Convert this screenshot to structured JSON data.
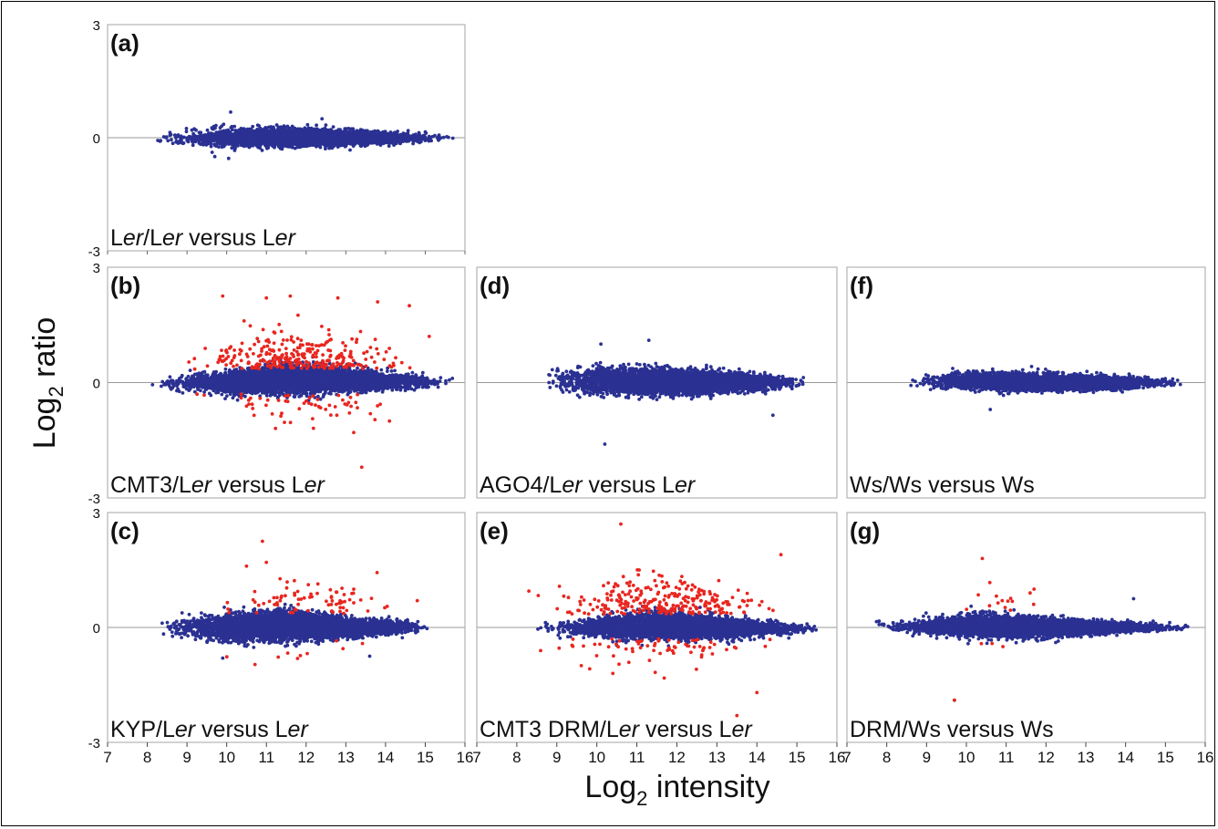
{
  "figure": {
    "ylabel_main": "Log",
    "ylabel_sub": "2",
    "ylabel_rest": " ratio",
    "xlabel_main": "Log",
    "xlabel_sub": "2",
    "xlabel_rest": " intensity",
    "colors": {
      "unchanged": "#2a3192",
      "changed": "#e8261f",
      "zero_line": "#9a9a9a",
      "frame": "#a6a6a6"
    }
  },
  "chart_data": [
    {
      "type": "scatter",
      "panel": "(a)",
      "label_parts": [
        [
          "L",
          false
        ],
        [
          "er",
          true
        ],
        [
          "/L",
          false
        ],
        [
          "er",
          true
        ],
        [
          " versus L",
          false
        ],
        [
          "er",
          true
        ]
      ],
      "xlim": [
        7,
        16
      ],
      "ylim": [
        -3,
        3
      ],
      "y_ticks": [
        "3",
        "0",
        "-3"
      ],
      "x_ticks": [],
      "series": [
        {
          "color": "blue",
          "x_range": [
            8.1,
            15.8
          ],
          "center": [
            [
              8.1,
              -0.02
            ],
            [
              10,
              0.0
            ],
            [
              12,
              0.0
            ],
            [
              14,
              0.0
            ],
            [
              15.8,
              0.0
            ]
          ],
          "spread": [
            [
              8.1,
              0.12
            ],
            [
              10,
              0.2
            ],
            [
              12,
              0.18
            ],
            [
              14,
              0.14
            ],
            [
              15.8,
              0.08
            ]
          ],
          "approx_points": 5000,
          "extremes": [
            [
              10.1,
              0.68
            ],
            [
              10.05,
              -0.55
            ],
            [
              9.7,
              -0.5
            ],
            [
              12.4,
              0.5
            ]
          ]
        }
      ]
    },
    {
      "type": "scatter",
      "panel": "(b)",
      "label_parts": [
        [
          "CMT3/L",
          false
        ],
        [
          "er",
          true
        ],
        [
          " versus L",
          false
        ],
        [
          "er",
          true
        ]
      ],
      "xlim": [
        7,
        16
      ],
      "ylim": [
        -3,
        3
      ],
      "y_ticks": [
        "3",
        "0",
        "-3"
      ],
      "x_ticks": [],
      "series": [
        {
          "color": "blue",
          "x_range": [
            8.0,
            15.9
          ],
          "center": [
            [
              8,
              0.0
            ],
            [
              10,
              0.0
            ],
            [
              11.5,
              0.1
            ],
            [
              13,
              0.05
            ],
            [
              15.9,
              0.0
            ]
          ],
          "spread": [
            [
              8,
              0.12
            ],
            [
              10,
              0.25
            ],
            [
              11.5,
              0.32
            ],
            [
              13,
              0.25
            ],
            [
              15.9,
              0.1
            ]
          ],
          "approx_points": 6000,
          "extremes": []
        },
        {
          "color": "red",
          "x_range": [
            8.4,
            15.2
          ],
          "approx_points": 340,
          "extremes": [
            [
              9.9,
              2.25
            ],
            [
              11,
              2.2
            ],
            [
              11.6,
              2.25
            ],
            [
              12.8,
              2.2
            ],
            [
              13.8,
              2.1
            ],
            [
              14.6,
              2.0
            ],
            [
              13.2,
              -1.3
            ],
            [
              13.4,
              -2.2
            ],
            [
              14.1,
              -1.0
            ],
            [
              15.1,
              1.2
            ]
          ]
        }
      ]
    },
    {
      "type": "scatter",
      "panel": "(c)",
      "label_parts": [
        [
          "KYP/L",
          false
        ],
        [
          "er",
          true
        ],
        [
          " versus L",
          false
        ],
        [
          "er",
          true
        ]
      ],
      "xlim": [
        7,
        16
      ],
      "ylim": [
        -3,
        3
      ],
      "y_ticks": [
        "3",
        "0",
        "-3"
      ],
      "x_ticks": [
        "7",
        "8",
        "9",
        "10",
        "11",
        "12",
        "13",
        "14",
        "15",
        "16"
      ],
      "series": [
        {
          "color": "blue",
          "x_range": [
            8.1,
            15.4
          ],
          "center": [
            [
              8.1,
              0.0
            ],
            [
              10,
              0.0
            ],
            [
              11.5,
              0.05
            ],
            [
              13,
              0.0
            ],
            [
              15.4,
              0.0
            ]
          ],
          "spread": [
            [
              8.1,
              0.15
            ],
            [
              10,
              0.3
            ],
            [
              11.5,
              0.3
            ],
            [
              13,
              0.22
            ],
            [
              15.4,
              0.1
            ]
          ],
          "approx_points": 6000,
          "extremes": [
            [
              9.9,
              -0.8
            ],
            [
              13.6,
              -0.75
            ]
          ]
        },
        {
          "color": "red",
          "x_range": [
            9.2,
            14.8
          ],
          "approx_points": 85,
          "extremes": [
            [
              10.9,
              2.25
            ],
            [
              11.0,
              1.7
            ],
            [
              10.5,
              1.6
            ],
            [
              13.2,
              1.0
            ],
            [
              14.8,
              0.7
            ]
          ]
        }
      ]
    },
    {
      "type": "scatter",
      "panel": "(d)",
      "label_parts": [
        [
          "AGO4/L",
          false
        ],
        [
          "er",
          true
        ],
        [
          " versus L",
          false
        ],
        [
          "er",
          true
        ]
      ],
      "xlim": [
        7,
        16
      ],
      "ylim": [
        -3,
        3
      ],
      "y_ticks": [],
      "x_ticks": [],
      "series": [
        {
          "color": "blue",
          "x_range": [
            8.5,
            15.5
          ],
          "center": [
            [
              8.5,
              0.05
            ],
            [
              10,
              0.05
            ],
            [
              12,
              0.0
            ],
            [
              14,
              0.0
            ],
            [
              15.5,
              0.0
            ]
          ],
          "spread": [
            [
              8.5,
              0.25
            ],
            [
              10,
              0.3
            ],
            [
              12,
              0.25
            ],
            [
              14,
              0.2
            ],
            [
              15.5,
              0.1
            ]
          ],
          "approx_points": 5500,
          "extremes": [
            [
              10.2,
              -1.6
            ],
            [
              11.3,
              1.1
            ],
            [
              10.1,
              1.0
            ],
            [
              14.4,
              -0.85
            ]
          ]
        }
      ]
    },
    {
      "type": "scatter",
      "panel": "(e)",
      "label_parts": [
        [
          "CMT3 DRM/L",
          false
        ],
        [
          "er",
          true
        ],
        [
          " versus L",
          false
        ],
        [
          "er",
          true
        ]
      ],
      "xlim": [
        7,
        16
      ],
      "ylim": [
        -3,
        3
      ],
      "y_ticks": [],
      "x_ticks": [
        "7",
        "8",
        "9",
        "10",
        "11",
        "12",
        "13",
        "14",
        "15",
        "16"
      ],
      "series": [
        {
          "color": "blue",
          "x_range": [
            8.4,
            15.7
          ],
          "center": [
            [
              8.4,
              0.0
            ],
            [
              10,
              0.0
            ],
            [
              11.5,
              0.05
            ],
            [
              13,
              0.0
            ],
            [
              15.7,
              -0.05
            ]
          ],
          "spread": [
            [
              8.4,
              0.12
            ],
            [
              10,
              0.22
            ],
            [
              11.5,
              0.28
            ],
            [
              13,
              0.22
            ],
            [
              15.7,
              0.08
            ]
          ],
          "approx_points": 6000,
          "extremes": []
        },
        {
          "color": "red",
          "x_range": [
            8.3,
            15.0
          ],
          "approx_points": 330,
          "extremes": [
            [
              10.6,
              2.7
            ],
            [
              14.6,
              1.9
            ],
            [
              14.0,
              -1.7
            ],
            [
              13.5,
              -2.3
            ],
            [
              10.4,
              -1.2
            ],
            [
              8.3,
              0.95
            ]
          ]
        }
      ]
    },
    {
      "type": "scatter",
      "panel": "(f)",
      "label_parts": [
        [
          "Ws/Ws versus Ws",
          false
        ]
      ],
      "xlim": [
        7,
        16
      ],
      "ylim": [
        -3,
        3
      ],
      "y_ticks": [],
      "x_ticks": [],
      "series": [
        {
          "color": "blue",
          "x_range": [
            8.4,
            15.6
          ],
          "center": [
            [
              8.4,
              0.0
            ],
            [
              10,
              0.05
            ],
            [
              12,
              0.0
            ],
            [
              14,
              0.0
            ],
            [
              15.6,
              0.0
            ]
          ],
          "spread": [
            [
              8.4,
              0.1
            ],
            [
              10,
              0.2
            ],
            [
              12,
              0.17
            ],
            [
              14,
              0.14
            ],
            [
              15.6,
              0.08
            ]
          ],
          "approx_points": 5000,
          "extremes": [
            [
              10.6,
              -0.7
            ],
            [
              11.8,
              0.35
            ]
          ]
        }
      ]
    },
    {
      "type": "scatter",
      "panel": "(g)",
      "label_parts": [
        [
          "DRM/Ws versus Ws",
          false
        ]
      ],
      "xlim": [
        7,
        16
      ],
      "ylim": [
        -3,
        3
      ],
      "y_ticks": [],
      "x_ticks": [
        "7",
        "8",
        "9",
        "10",
        "11",
        "12",
        "13",
        "14",
        "15",
        "16"
      ],
      "series": [
        {
          "color": "blue",
          "x_range": [
            7.5,
            15.8
          ],
          "center": [
            [
              7.5,
              0.25
            ],
            [
              8.1,
              0.0
            ],
            [
              10,
              0.05
            ],
            [
              12,
              0.0
            ],
            [
              14,
              0.0
            ],
            [
              15.8,
              0.0
            ]
          ],
          "spread": [
            [
              7.5,
              0.02
            ],
            [
              8.1,
              0.1
            ],
            [
              10,
              0.25
            ],
            [
              12,
              0.2
            ],
            [
              14,
              0.12
            ],
            [
              15.8,
              0.07
            ]
          ],
          "approx_points": 5500,
          "extremes": [
            [
              9.7,
              -1.9
            ],
            [
              14.2,
              0.75
            ]
          ]
        },
        {
          "color": "red",
          "x_range": [
            9.7,
            11.7
          ],
          "approx_points": 14,
          "extremes": [
            [
              10.4,
              1.8
            ],
            [
              11.7,
              1.0
            ],
            [
              9.7,
              -1.9
            ],
            [
              11.6,
              0.9
            ],
            [
              10.3,
              0.85
            ],
            [
              10.9,
              0.7
            ]
          ]
        }
      ]
    }
  ]
}
